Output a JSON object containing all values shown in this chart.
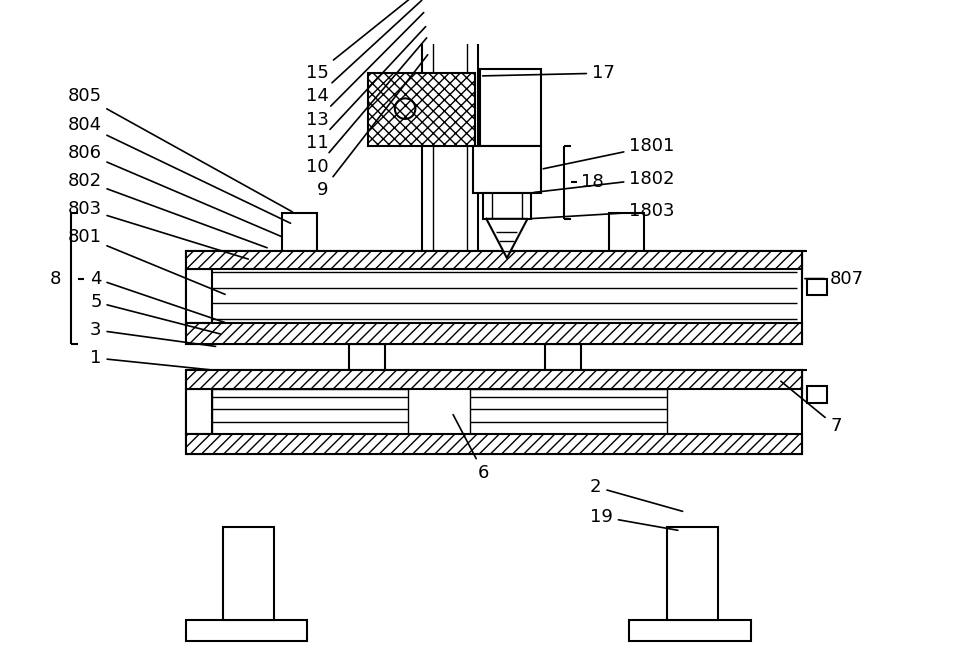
{
  "bg_color": "#ffffff",
  "line_color": "#000000",
  "lw": 1.5,
  "thin_lw": 1.0,
  "figsize": [
    9.55,
    6.69
  ],
  "dpi": 100
}
